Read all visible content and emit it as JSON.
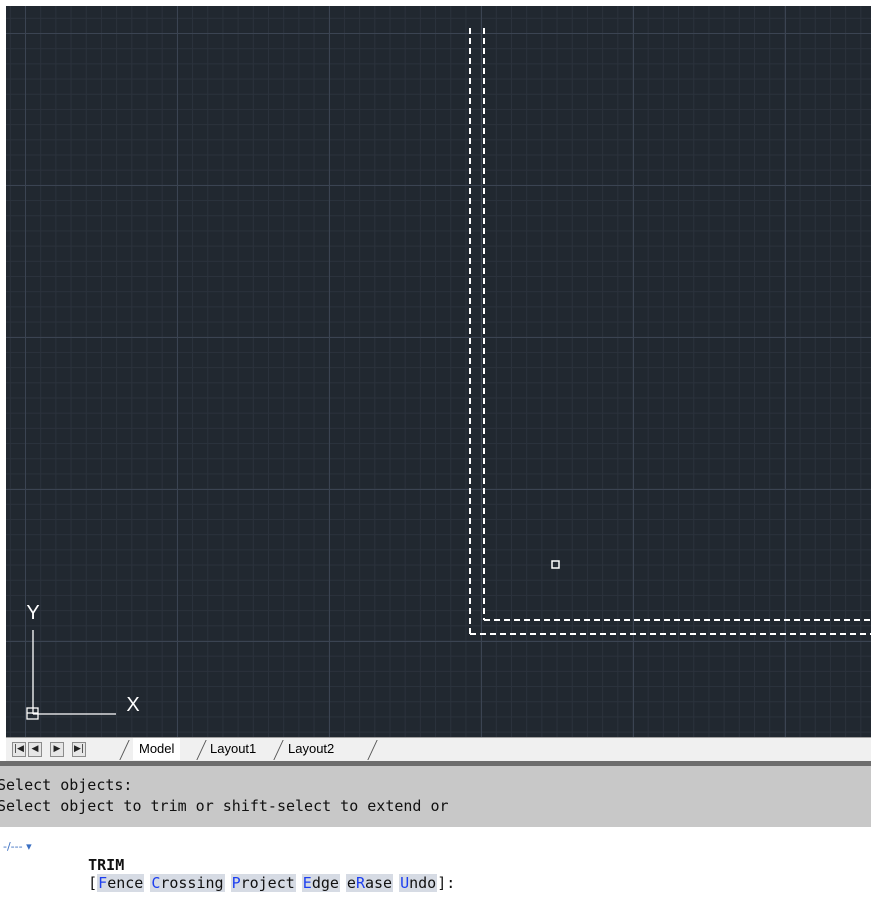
{
  "drawing": {
    "ucs_x_label": "X",
    "ucs_y_label": "Y",
    "colors": {
      "background": "#212830",
      "grid_major": "#3b4452",
      "grid_minor": "#2b323c",
      "selected_lines": "#ffffff"
    }
  },
  "tabs": {
    "nav_first": "|◀",
    "nav_prev": "◀",
    "nav_next": "▶",
    "nav_last": "▶|",
    "model": "Model",
    "layout1": "Layout1",
    "layout2": "Layout2",
    "active": "Model"
  },
  "history": {
    "line1": "Select objects:",
    "line2": "Select object to trim or shift-select to extend or"
  },
  "command": {
    "icon": "-/--- ▾",
    "name": "TRIM",
    "open": "[",
    "close": "]:",
    "options": [
      {
        "hot": "F",
        "rest": "ence"
      },
      {
        "hot": "C",
        "rest": "rossing"
      },
      {
        "hot": "P",
        "rest": "roject"
      },
      {
        "hot": "E",
        "rest": "dge"
      },
      {
        "pre": "e",
        "hot": "R",
        "rest": "ase"
      },
      {
        "hot": "U",
        "rest": "ndo"
      }
    ]
  }
}
